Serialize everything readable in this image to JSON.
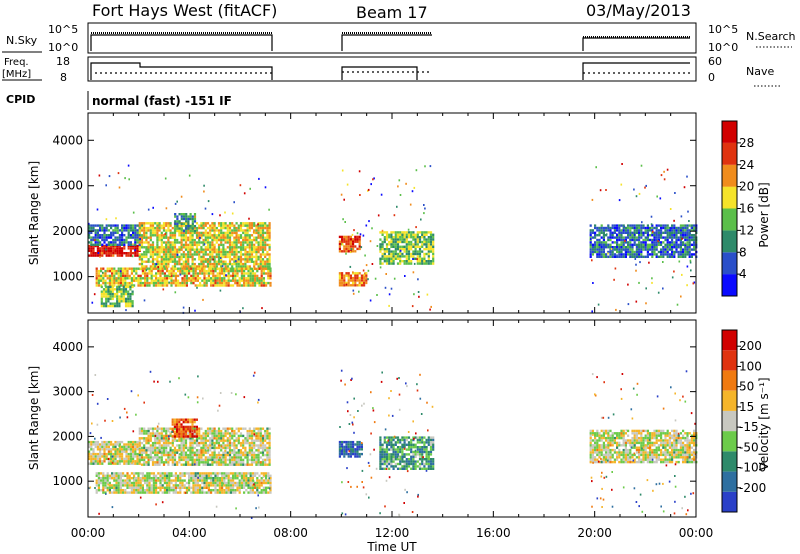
{
  "header": {
    "station": "Fort Hays West (fitACF)",
    "beam": "Beam 17",
    "date": "03/May/2013"
  },
  "strips": {
    "nsky_label": "N.Sky",
    "nsky_ticks": [
      "10^5",
      "10^0"
    ],
    "nsearch_label": "N.Search",
    "nsearch_ticks": [
      "10^5",
      "10^0"
    ],
    "freq_label_1": "Freq.",
    "freq_label_2": "[MHz]",
    "freq_ticks": [
      "18",
      "8"
    ],
    "nave_label": "Nave",
    "nave_ticks": [
      "60",
      "0"
    ],
    "cpid_label": "CPID",
    "cpid_text": "normal (fast) -151 IF"
  },
  "chart_data": [
    {
      "type": "heatmap",
      "name": "power",
      "ylabel": "Slant Range [km]",
      "xlabel": "Time UT",
      "xticks": [
        "00:00",
        "04:00",
        "08:00",
        "12:00",
        "16:00",
        "20:00",
        "00:00"
      ],
      "yticks": [
        "1000",
        "2000",
        "3000",
        "4000"
      ],
      "ylim": [
        200,
        4600
      ],
      "xlim_hours": [
        0,
        24
      ],
      "colorbar": {
        "label": "Power [dB]",
        "ticks": [
          "4",
          "8",
          "12",
          "16",
          "20",
          "24",
          "28"
        ],
        "colors": [
          "#0a0aff",
          "#2a4fc9",
          "#2e8a6a",
          "#5bbf4a",
          "#f5e32a",
          "#f08c1c",
          "#e0330f",
          "#d10000"
        ]
      },
      "bands": [
        {
          "t0": 0.0,
          "t1": 2.0,
          "r0": 1450,
          "r1": 1700,
          "level": 0.92
        },
        {
          "t0": 0.0,
          "t1": 2.0,
          "r0": 1700,
          "r1": 2150,
          "level": 0.25
        },
        {
          "t0": 2.0,
          "t1": 7.2,
          "r0": 1150,
          "r1": 2200,
          "level": 0.55
        },
        {
          "t0": 0.3,
          "t1": 7.2,
          "r0": 800,
          "r1": 1200,
          "level": 0.6
        },
        {
          "t0": 0.5,
          "t1": 1.8,
          "r0": 350,
          "r1": 800,
          "level": 0.45
        },
        {
          "t0": 3.4,
          "t1": 4.2,
          "r0": 2000,
          "r1": 2400,
          "level": 0.35
        },
        {
          "t0": 9.9,
          "t1": 10.7,
          "r0": 1550,
          "r1": 1900,
          "level": 0.8
        },
        {
          "t0": 9.9,
          "t1": 11.0,
          "r0": 800,
          "r1": 1100,
          "level": 0.7
        },
        {
          "t0": 11.5,
          "t1": 13.6,
          "r0": 1300,
          "r1": 2000,
          "level": 0.45
        },
        {
          "t0": 19.8,
          "t1": 24.0,
          "r0": 1450,
          "r1": 2150,
          "level": 0.25
        }
      ]
    },
    {
      "type": "heatmap",
      "name": "velocity",
      "ylabel": "Slant Range [km]",
      "xlabel": "Time UT",
      "xticks": [
        "00:00",
        "04:00",
        "08:00",
        "12:00",
        "16:00",
        "20:00",
        "00:00"
      ],
      "yticks": [
        "1000",
        "2000",
        "3000",
        "4000"
      ],
      "ylim": [
        200,
        4600
      ],
      "xlim_hours": [
        0,
        24
      ],
      "colorbar": {
        "label": "Velocity [m s⁻¹]",
        "ticks": [
          "200",
          "100",
          "50",
          "15",
          "-15",
          "-50",
          "-100",
          "-200"
        ],
        "colors": [
          "#2a40c8",
          "#2e6fa0",
          "#2e8a6a",
          "#6ccb4a",
          "#c8c8c0",
          "#f5b52a",
          "#f07a10",
          "#e0330f",
          "#d10000"
        ]
      },
      "bands": [
        {
          "t0": 0.0,
          "t1": 2.0,
          "r0": 1400,
          "r1": 1900,
          "level": 0.5
        },
        {
          "t0": 2.0,
          "t1": 7.2,
          "r0": 1350,
          "r1": 2200,
          "level": 0.5
        },
        {
          "t0": 0.3,
          "t1": 7.2,
          "r0": 750,
          "r1": 1200,
          "level": 0.5
        },
        {
          "t0": 3.3,
          "t1": 4.3,
          "r0": 2000,
          "r1": 2400,
          "level": 0.8
        },
        {
          "t0": 9.9,
          "t1": 10.8,
          "r0": 1550,
          "r1": 1900,
          "level": 0.15
        },
        {
          "t0": 11.5,
          "t1": 13.6,
          "r0": 1300,
          "r1": 2000,
          "level": 0.3
        },
        {
          "t0": 19.8,
          "t1": 24.0,
          "r0": 1450,
          "r1": 2150,
          "level": 0.5
        }
      ]
    }
  ]
}
